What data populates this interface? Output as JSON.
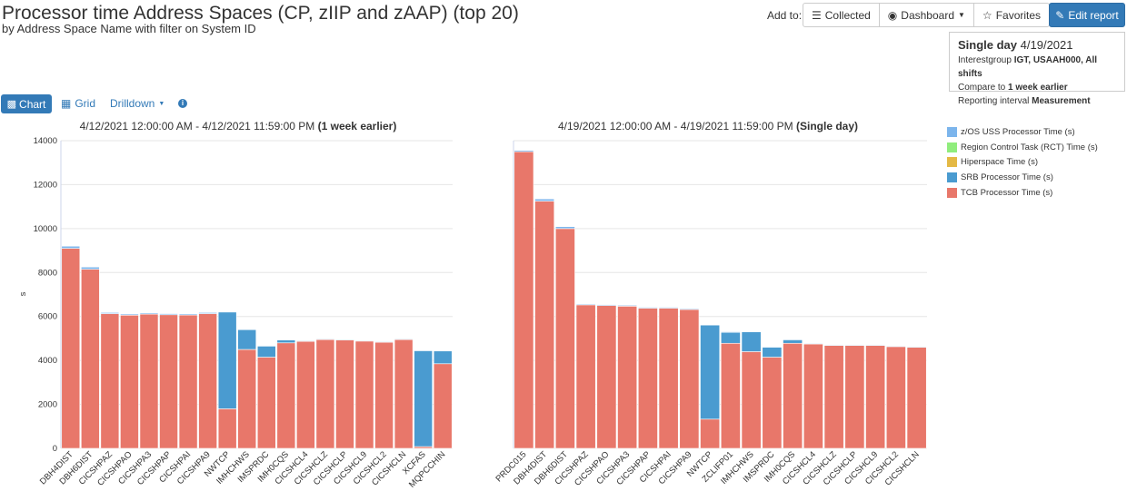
{
  "header": {
    "title": "Processor time Address Spaces (CP, zIIP and zAAP) (top 20)",
    "subtitle": "by Address Space Name with filter on System ID"
  },
  "toolbar": {
    "add_to_label": "Add to:",
    "collected_label": "Collected",
    "dashboard_label": "Dashboard",
    "favorites_label": "Favorites",
    "edit_report_label": "Edit report"
  },
  "info_box": {
    "title_bold": "Single day",
    "title_date": "4/19/2021",
    "line1_prefix": "Interestgroup",
    "line1_value": "IGT, USAAH000, All shifts",
    "line2_prefix": "Compare to",
    "line2_value": "1 week earlier",
    "line3_prefix": "Reporting interval",
    "line3_value": "Measurement"
  },
  "view_controls": {
    "chart_label": "Chart",
    "grid_label": "Grid",
    "drilldown_label": "Drilldown",
    "info_glyph": "i"
  },
  "legend": [
    {
      "name": "z/OS USS Processor Time (s)",
      "color": "#7cb5ec"
    },
    {
      "name": "Region Control Task (RCT) Time (s)",
      "color": "#90ed7d"
    },
    {
      "name": "Hiperspace Time (s)",
      "color": "#e4b945"
    },
    {
      "name": "SRB Processor Time (s)",
      "color": "#4a9bd0"
    },
    {
      "name": "TCB Processor Time (s)",
      "color": "#e8776a"
    }
  ],
  "chart_data": [
    {
      "type": "bar",
      "stacked": true,
      "title": "4/12/2021 12:00:00 AM - 4/12/2021 11:59:00 PM",
      "title_bold": "(1 week earlier)",
      "ylabel": "s",
      "ylim": [
        0,
        14000
      ],
      "yticks": [
        0,
        2000,
        4000,
        6000,
        8000,
        10000,
        12000,
        14000
      ],
      "grid": true,
      "categories": [
        "DBH4DIST",
        "DBH6DIST",
        "CICSHPAZ",
        "CICSHPAO",
        "CICSHPA3",
        "CICSHPAP",
        "CICSHPAI",
        "CICSHPA9",
        "NWTCP",
        "IMHCHWS",
        "IMSPRDC",
        "IMH0CQS",
        "CICSHCL4",
        "CICSHCLZ",
        "CICSHCLP",
        "CICSHCL9",
        "CICSHCL2",
        "CICSHCLN",
        "XCFAS",
        "MQPCCHIN"
      ],
      "series": [
        {
          "name": "TCB Processor Time (s)",
          "values": [
            9100,
            8150,
            6130,
            6060,
            6110,
            6080,
            6070,
            6130,
            1800,
            4500,
            4150,
            4800,
            4870,
            4950,
            4930,
            4880,
            4830,
            4950,
            80,
            3850
          ]
        },
        {
          "name": "SRB Processor Time (s)",
          "values": [
            0,
            0,
            0,
            0,
            0,
            0,
            0,
            0,
            4400,
            900,
            500,
            130,
            0,
            0,
            0,
            0,
            0,
            0,
            4360,
            580
          ]
        },
        {
          "name": "Hiperspace Time (s)",
          "values": [
            0,
            0,
            0,
            0,
            0,
            0,
            0,
            0,
            0,
            0,
            0,
            0,
            0,
            0,
            0,
            0,
            0,
            0,
            0,
            0
          ]
        },
        {
          "name": "Region Control Task (RCT) Time (s)",
          "values": [
            0,
            0,
            0,
            0,
            0,
            0,
            0,
            0,
            0,
            0,
            0,
            0,
            0,
            0,
            0,
            0,
            0,
            0,
            0,
            0
          ]
        },
        {
          "name": "z/OS USS Processor Time (s)",
          "values": [
            100,
            100,
            50,
            50,
            50,
            50,
            50,
            50,
            0,
            0,
            0,
            0,
            30,
            30,
            30,
            30,
            30,
            30,
            0,
            0
          ]
        }
      ]
    },
    {
      "type": "bar",
      "stacked": true,
      "title": "4/19/2021 12:00:00 AM - 4/19/2021 11:59:00 PM",
      "title_bold": "(Single day)",
      "ylim": [
        0,
        14000
      ],
      "grid": true,
      "categories": [
        "PRDC015",
        "DBH4DIST",
        "DBH6DIST",
        "CICSHPAZ",
        "CICSHPAO",
        "CICSHPA3",
        "CICSHPAP",
        "CICSHPAI",
        "CICSHPA9",
        "NWTCP",
        "ZCLIFP01",
        "IMHCHWS",
        "IMSPRDC",
        "IMH0CQS",
        "CICSHCL4",
        "CICSHCLZ",
        "CICSHCLP",
        "CICSHCL9",
        "CICSHCL2",
        "CICSHCLN"
      ],
      "series": [
        {
          "name": "TCB Processor Time (s)",
          "values": [
            13500,
            11250,
            10000,
            6530,
            6500,
            6470,
            6380,
            6380,
            6320,
            1330,
            4780,
            4400,
            4150,
            4780,
            4750,
            4680,
            4680,
            4680,
            4630,
            4600
          ]
        },
        {
          "name": "SRB Processor Time (s)",
          "values": [
            0,
            0,
            0,
            0,
            0,
            0,
            0,
            0,
            0,
            4280,
            500,
            900,
            450,
            160,
            0,
            0,
            0,
            0,
            0,
            0
          ]
        },
        {
          "name": "Hiperspace Time (s)",
          "values": [
            0,
            0,
            0,
            0,
            0,
            0,
            0,
            0,
            0,
            0,
            0,
            0,
            0,
            0,
            0,
            0,
            0,
            0,
            0,
            0
          ]
        },
        {
          "name": "Region Control Task (RCT) Time (s)",
          "values": [
            0,
            0,
            0,
            0,
            0,
            0,
            0,
            0,
            0,
            0,
            0,
            0,
            0,
            0,
            0,
            0,
            0,
            0,
            0,
            0
          ]
        },
        {
          "name": "z/OS USS Processor Time (s)",
          "values": [
            60,
            100,
            90,
            40,
            40,
            40,
            40,
            40,
            40,
            0,
            30,
            0,
            30,
            30,
            30,
            30,
            30,
            30,
            30,
            30
          ]
        }
      ]
    }
  ]
}
